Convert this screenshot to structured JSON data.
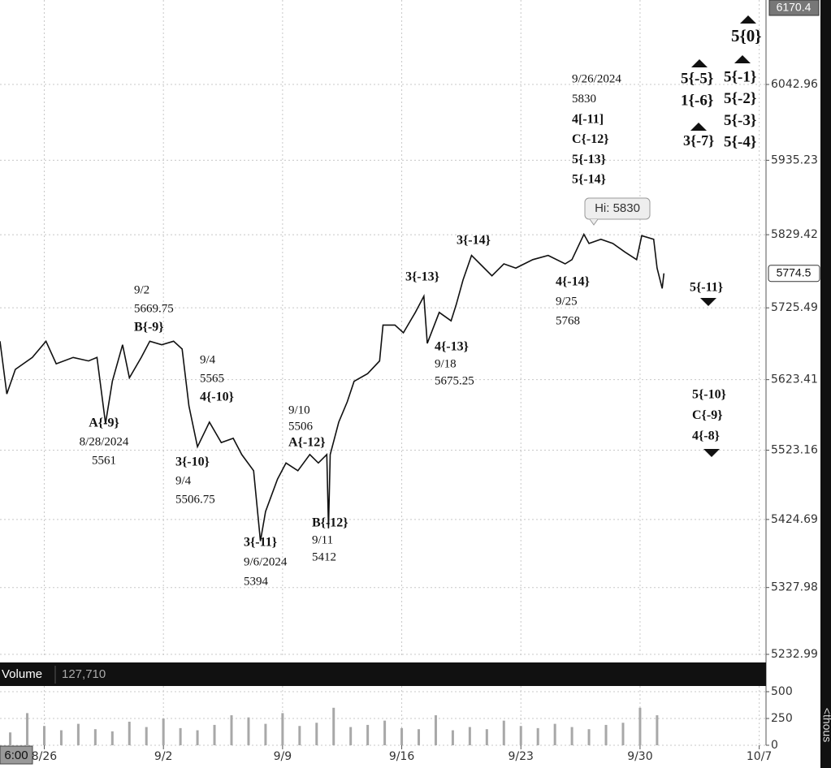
{
  "chart_data": [
    {
      "type": "line",
      "series": [
        {
          "name": "Price",
          "color": "#111111",
          "x": [
            -2.6,
            -2.2,
            -1.7,
            -0.7,
            0.1,
            0.7,
            1.7,
            2.6,
            3.1,
            3.6,
            4.0,
            4.6,
            5.0,
            5.7,
            6.2,
            6.9,
            7.6,
            8.1,
            8.5,
            9.0,
            9.7,
            10.4,
            11.1,
            11.6,
            12.3,
            12.7,
            13.0,
            13.7,
            14.2,
            14.9,
            15.6,
            16.1,
            16.6,
            16.7,
            16.8,
            17.3,
            17.8,
            18.2,
            19.0,
            19.7,
            19.9,
            20.6,
            21.1,
            21.8,
            22.3,
            22.5,
            23.2,
            23.9,
            24.2,
            24.6,
            25.1,
            25.6,
            26.3,
            27.0,
            27.7,
            28.7,
            29.6,
            30.6,
            31.0,
            31.7,
            32.0,
            32.7,
            33.4,
            34.1,
            34.8,
            35.1,
            35.8,
            36.0,
            36.3,
            36.4
          ],
          "values": [
            5678,
            5603,
            5638,
            5655,
            5678,
            5646,
            5655,
            5650,
            5655,
            5561,
            5621,
            5673,
            5626,
            5655,
            5678,
            5673,
            5678,
            5667,
            5586,
            5528,
            5563,
            5534,
            5540,
            5517,
            5494,
            5394,
            5436,
            5482,
            5505,
            5494,
            5517,
            5505,
            5517,
            5412,
            5517,
            5563,
            5592,
            5621,
            5632,
            5650,
            5701,
            5701,
            5690,
            5719,
            5742,
            5675,
            5719,
            5707,
            5730,
            5765,
            5800,
            5788,
            5771,
            5788,
            5782,
            5794,
            5800,
            5788,
            5794,
            5830,
            5817,
            5823,
            5817,
            5805,
            5794,
            5828,
            5823,
            5782,
            5753,
            5774.5
          ]
        }
      ],
      "xlim": [
        -2.6,
        42.4
      ],
      "xticks": [
        {
          "value": 0,
          "label": "8/26"
        },
        {
          "value": 7,
          "label": "9/2"
        },
        {
          "value": 14,
          "label": "9/9"
        },
        {
          "value": 21,
          "label": "9/16"
        },
        {
          "value": 28,
          "label": "9/23"
        },
        {
          "value": 35,
          "label": "9/30"
        },
        {
          "value": 42,
          "label": "10/7"
        }
      ],
      "ylim": [
        5230.7,
        6163
      ],
      "yticks": [
        5232.99,
        5327.98,
        5424.69,
        5523.16,
        5623.41,
        5725.49,
        5829.42,
        5935.23,
        6042.96
      ],
      "grid": true,
      "top_price_label": "6170.4",
      "last_price_label": "5774.5",
      "hi_label": "Hi: 5830",
      "time_label": "6:00",
      "annotations": [
        [
          "9/2",
          "5669.75",
          "B{-9}"
        ],
        [
          "A{-9}",
          "8/28/2024",
          "5561"
        ],
        [
          "9/4",
          "5565",
          "4{-10}"
        ],
        [
          "3{-10}",
          "9/4",
          "5506.75"
        ],
        [
          "3{-11}",
          "9/6/2024",
          "5394"
        ],
        [
          "9/10",
          "5506",
          "A{-12}"
        ],
        [
          "B{-12}",
          "9/11",
          "5412"
        ],
        [
          "3{-13}"
        ],
        [
          "4{-13}",
          "9/18",
          "5675.25"
        ],
        [
          "3{-14}"
        ],
        [
          "4{-14}",
          "9/25",
          "5768"
        ],
        [
          "9/26/2024",
          "5830",
          "4[-11]",
          "C{-12}",
          "5{-13}",
          "5{-14}"
        ],
        [
          "5{-5}",
          "1{-6}"
        ],
        [
          "3{-7}"
        ],
        [
          "5{0}"
        ],
        [
          "5{-1}",
          "5{-2}",
          "5{-3}",
          "5{-4}"
        ],
        [
          "5{-11}"
        ],
        [
          "5{-10}",
          "C{-9}",
          "4{-8}"
        ]
      ]
    },
    {
      "type": "bar",
      "title": "Volume",
      "value_label": "127,710",
      "y_label": "<thous",
      "color": "#a8a8a8",
      "x": [
        -2,
        -1,
        0,
        1,
        2,
        3,
        4,
        5,
        6,
        7,
        8,
        9,
        10,
        11,
        12,
        13,
        14,
        15,
        16,
        17,
        18,
        19,
        20,
        21,
        22,
        23,
        24,
        25,
        26,
        27,
        28,
        29,
        30,
        31,
        32,
        33,
        34,
        35,
        36
      ],
      "values": [
        120,
        300,
        180,
        140,
        200,
        150,
        130,
        220,
        170,
        250,
        160,
        140,
        190,
        280,
        260,
        200,
        300,
        180,
        210,
        350,
        170,
        190,
        230,
        160,
        150,
        280,
        140,
        170,
        150,
        230,
        180,
        160,
        200,
        170,
        150,
        190,
        210,
        350,
        280
      ],
      "xlim": [
        -2.6,
        42.4
      ],
      "ylim": [
        0,
        553
      ],
      "yticks": [
        0,
        250,
        500
      ]
    }
  ]
}
